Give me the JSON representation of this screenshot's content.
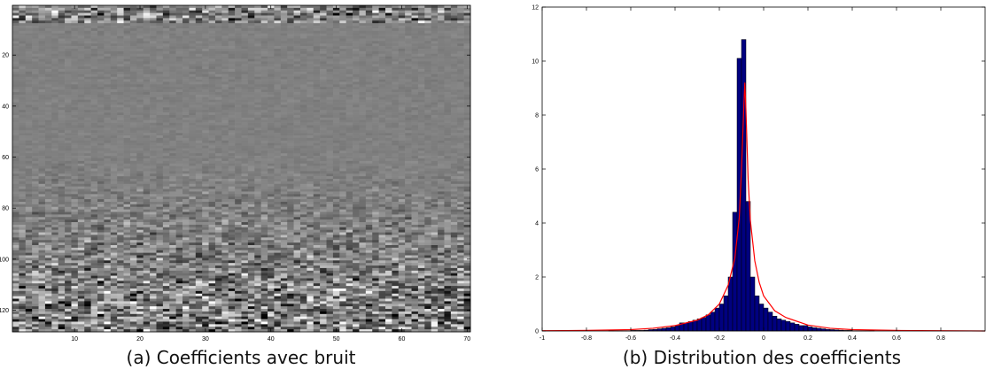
{
  "chart_data": [
    {
      "type": "heatmap",
      "caption": "(a) Coefficients avec bruit",
      "xlim": [
        0.5,
        70.5
      ],
      "ylim": [
        0.5,
        128.5
      ],
      "y_reversed": true,
      "colormap": "gray",
      "xticks": [
        10,
        20,
        30,
        40,
        50,
        60,
        70
      ],
      "yticks": [
        20,
        40,
        60,
        80,
        100,
        120
      ]
    },
    {
      "type": "histogram",
      "caption": "(b) Distribution des coefficients",
      "color": "#000080",
      "xlim": [
        -1,
        1
      ],
      "ylim": [
        0,
        12
      ],
      "xticks": [
        -1,
        -0.8,
        -0.6,
        -0.4,
        -0.2,
        0,
        0.2,
        0.4,
        0.6,
        0.8
      ],
      "yticks": [
        0,
        2,
        4,
        6,
        8,
        10,
        12
      ],
      "bins": [
        -1,
        -0.98,
        -0.96,
        -0.94,
        -0.92,
        -0.9,
        -0.88,
        -0.86,
        -0.84,
        -0.82,
        -0.8,
        -0.78,
        -0.76,
        -0.74,
        -0.72,
        -0.7,
        -0.68,
        -0.66,
        -0.64,
        -0.62,
        -0.6,
        -0.58,
        -0.56,
        -0.54,
        -0.52,
        -0.5,
        -0.48,
        -0.46,
        -0.44,
        -0.42,
        -0.4,
        -0.38,
        -0.36,
        -0.34,
        -0.32,
        -0.3,
        -0.28,
        -0.26,
        -0.24,
        -0.22,
        -0.2,
        -0.18,
        -0.16,
        -0.14,
        -0.12,
        -0.1,
        -0.08,
        -0.06,
        -0.04,
        -0.02,
        0,
        0.02,
        0.04,
        0.06,
        0.08,
        0.1,
        0.12,
        0.14,
        0.16,
        0.18,
        0.2,
        0.22,
        0.24,
        0.26,
        0.28,
        0.3,
        0.32,
        0.34,
        0.36,
        0.38,
        0.4,
        0.42,
        0.44,
        0.46,
        0.48,
        0.5,
        0.52,
        0.54,
        0.56,
        0.58,
        0.6,
        0.62,
        0.64,
        0.66,
        0.68,
        0.7,
        0.72,
        0.74,
        0.76,
        0.78,
        0.8,
        0.82,
        0.84,
        0.86,
        0.88,
        0.9,
        0.92,
        0.94,
        0.96,
        0.98,
        1
      ],
      "counts": [
        0,
        0,
        0,
        0,
        0,
        0,
        0,
        0,
        0,
        0,
        0,
        0,
        0,
        0,
        0,
        0.01,
        0.01,
        0.01,
        0.01,
        0.01,
        0.02,
        0.02,
        0.02,
        0.03,
        0.05,
        0.06,
        0.08,
        0.1,
        0.12,
        0.15,
        0.2,
        0.3,
        0.3,
        0.35,
        0.4,
        0.45,
        0.5,
        0.6,
        0.7,
        0.85,
        1.0,
        1.3,
        2.0,
        4.4,
        10.1,
        10.8,
        4.8,
        2.0,
        1.3,
        1.0,
        0.85,
        0.7,
        0.55,
        0.45,
        0.4,
        0.35,
        0.3,
        0.25,
        0.2,
        0.2,
        0.15,
        0.12,
        0.1,
        0.08,
        0.06,
        0.05,
        0.04,
        0.03,
        0.02,
        0.02,
        0.01,
        0.01,
        0.01,
        0.01,
        0.01,
        0,
        0,
        0,
        0,
        0,
        0,
        0,
        0,
        0,
        0,
        0,
        0,
        0,
        0,
        0,
        0,
        0,
        0,
        0,
        0,
        0,
        0,
        0,
        0,
        0
      ],
      "curve": {
        "color": "#ff0000",
        "x": [
          -1,
          -0.8,
          -0.6,
          -0.5,
          -0.4,
          -0.3,
          -0.25,
          -0.2,
          -0.16,
          -0.13,
          -0.11,
          -0.1,
          -0.09,
          -0.085,
          -0.08,
          -0.07,
          -0.06,
          -0.04,
          -0.02,
          0,
          0.05,
          0.1,
          0.2,
          0.3,
          0.4,
          0.6,
          0.8,
          1
        ],
        "y": [
          0.01,
          0.02,
          0.05,
          0.1,
          0.2,
          0.4,
          0.6,
          1.0,
          1.7,
          2.7,
          4.2,
          6,
          8.2,
          9.2,
          8.2,
          5.6,
          4.1,
          2.6,
          1.8,
          1.3,
          0.75,
          0.5,
          0.22,
          0.1,
          0.05,
          0.02,
          0.01,
          0
        ]
      }
    }
  ]
}
